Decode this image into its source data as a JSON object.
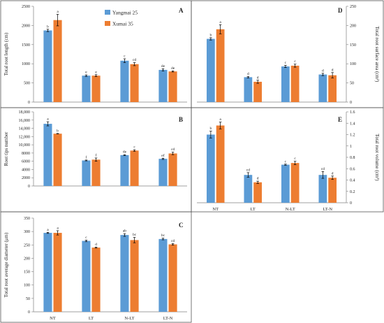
{
  "colors": {
    "s1": "#5b9bd5",
    "s2": "#ed7d31",
    "axis": "#808080",
    "err": "#000000"
  },
  "legend": {
    "s1": "Yangmai 25",
    "s2": "Xumai 35"
  },
  "chart_data": [
    {
      "panel": "A",
      "type": "bar",
      "categories": [
        "NT",
        "LT",
        "N-LT",
        "LT-N"
      ],
      "series": [
        {
          "name": "Yangmai 25",
          "values": [
            1870,
            690,
            1080,
            840
          ],
          "errors": [
            30,
            20,
            50,
            30
          ],
          "letters": [
            "b",
            "e",
            "c",
            "de"
          ]
        },
        {
          "name": "Xumai 35",
          "values": [
            2140,
            690,
            990,
            800
          ],
          "errors": [
            150,
            25,
            40,
            15
          ],
          "letters": [
            "a",
            "e",
            "cd",
            "de"
          ]
        }
      ],
      "ylabel": "Total root length (cm)",
      "ylim": [
        0,
        2500
      ],
      "yticks": [
        "0",
        "500",
        "1000",
        "1500",
        "2000",
        "2500"
      ],
      "show_xticks": false
    },
    {
      "panel": "B",
      "type": "bar",
      "categories": [
        "NT",
        "LT",
        "N-LT",
        "LT-N"
      ],
      "series": [
        {
          "name": "Yangmai 25",
          "values": [
            15100,
            6200,
            7500,
            6600
          ],
          "errors": [
            500,
            100,
            100,
            150
          ],
          "letters": [
            "a",
            "f",
            "de",
            "ef"
          ]
        },
        {
          "name": "Xumai 35",
          "values": [
            12700,
            6400,
            8600,
            7900
          ],
          "errors": [
            50,
            400,
            200,
            300
          ],
          "letters": [
            "b",
            "f",
            "c",
            "cd"
          ]
        }
      ],
      "ylabel": "Root tips number",
      "ylim": [
        0,
        18000
      ],
      "yticks": [
        "0",
        "2000",
        "4000",
        "6000",
        "8000",
        "10,000",
        "12,000",
        "14,000",
        "16,000",
        "18,000"
      ],
      "show_xticks": false
    },
    {
      "panel": "C",
      "type": "bar",
      "categories": [
        "NT",
        "LT",
        "N-LT",
        "LT-N"
      ],
      "series": [
        {
          "name": "Yangmai 25",
          "values": [
            295,
            265,
            287,
            272
          ],
          "errors": [
            2,
            3,
            5,
            3
          ],
          "letters": [
            "a",
            "c",
            "ab",
            "bc"
          ]
        },
        {
          "name": "Xumai 35",
          "values": [
            295,
            240,
            268,
            252
          ],
          "errors": [
            8,
            2,
            10,
            3
          ],
          "letters": [
            "a",
            "d",
            "bc",
            "cd"
          ]
        }
      ],
      "ylabel": "Total root average diameter (μm)",
      "ylim": [
        0,
        350
      ],
      "yticks": [
        "0",
        "50",
        "100",
        "150",
        "200",
        "250",
        "300",
        "350"
      ],
      "show_xticks": true
    },
    {
      "panel": "D",
      "type": "bar",
      "categories": [
        "NT",
        "LT",
        "N-LT",
        "LT-N"
      ],
      "series": [
        {
          "name": "Yangmai 25",
          "values": [
            165,
            65,
            93,
            72
          ],
          "errors": [
            3,
            2,
            3,
            3
          ],
          "letters": [
            "b",
            "d",
            "c",
            "d"
          ]
        },
        {
          "name": "Xumai 35",
          "values": [
            190,
            53,
            95,
            70
          ],
          "errors": [
            12,
            4,
            4,
            7
          ],
          "letters": [
            "a",
            "d",
            "c",
            "d"
          ]
        }
      ],
      "ylabel": "Total root surface area (cm²)",
      "ylim": [
        0,
        250
      ],
      "yticks": [
        "0",
        "50",
        "100",
        "150",
        "200",
        "250"
      ],
      "show_xticks": false
    },
    {
      "panel": "E",
      "type": "bar",
      "categories": [
        "NT",
        "LT",
        "N-LT",
        "LT-N"
      ],
      "series": [
        {
          "name": "Yangmai 25",
          "values": [
            1.2,
            0.49,
            0.67,
            0.49
          ],
          "errors": [
            0.06,
            0.04,
            0.01,
            0.06
          ],
          "letters": [
            "b",
            "cd",
            "c",
            "cd"
          ]
        },
        {
          "name": "Xumai 35",
          "values": [
            1.36,
            0.36,
            0.7,
            0.44
          ],
          "errors": [
            0.06,
            0.02,
            0.03,
            0.03
          ],
          "letters": [
            "a",
            "d",
            "c",
            "d"
          ]
        }
      ],
      "ylabel": "Total root volume (cm³)",
      "ylim": [
        0,
        1.6
      ],
      "yticks": [
        "0",
        "0.2",
        "0.4",
        "0.6",
        "0.8",
        "1",
        "1.2",
        "1.4",
        "1.6"
      ],
      "show_xticks": true
    }
  ]
}
